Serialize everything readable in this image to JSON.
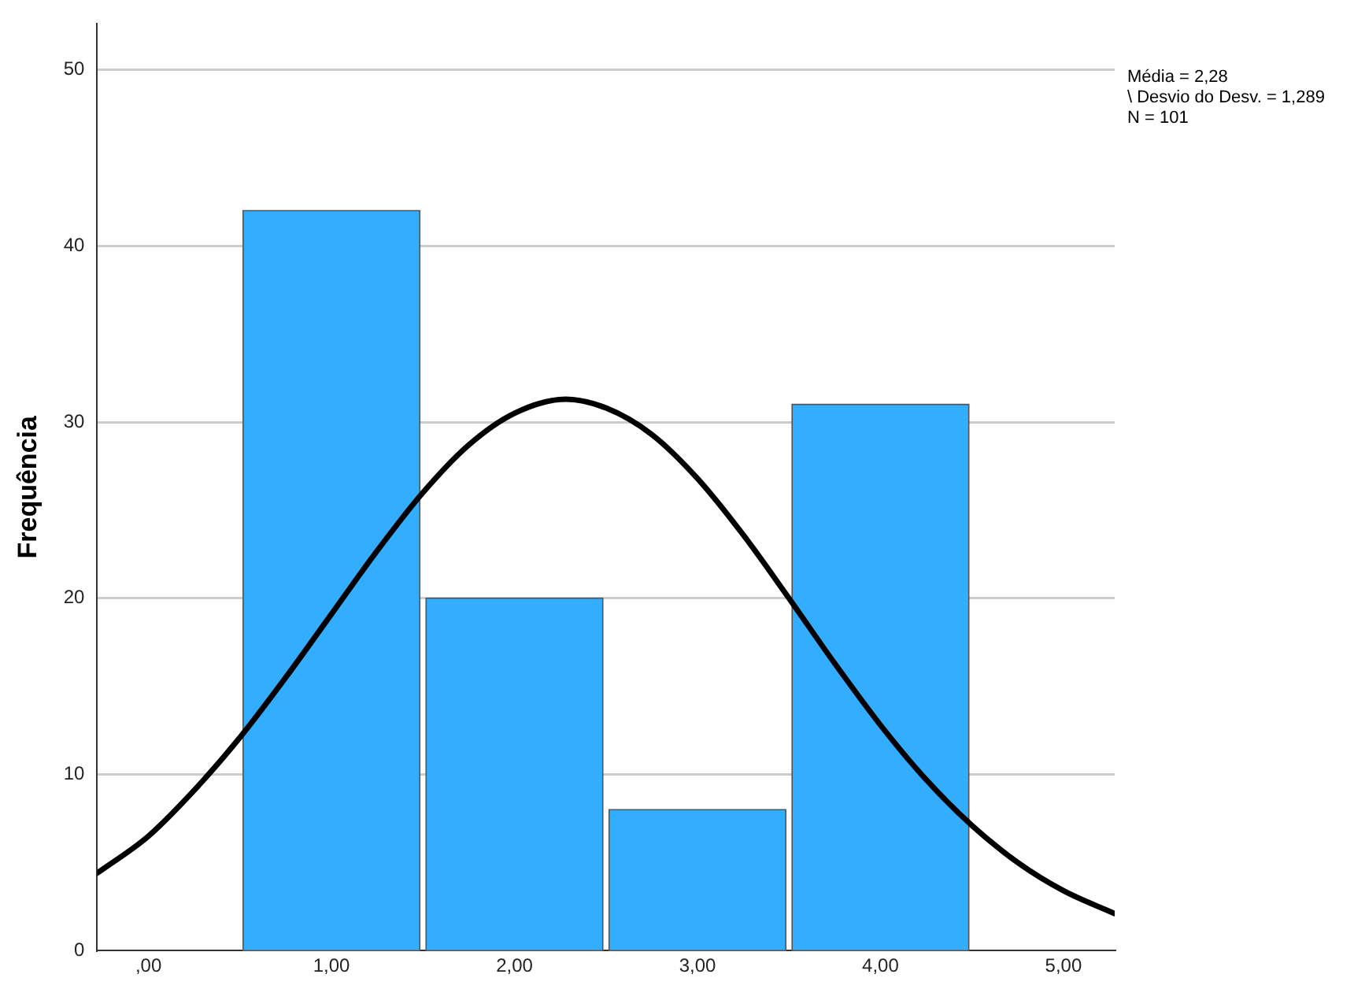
{
  "chart_data": {
    "type": "histogram",
    "ylabel": "Frequência",
    "bins": [
      0.5,
      1.5,
      2.5,
      3.5,
      4.5
    ],
    "values": [
      42,
      20,
      8,
      31
    ],
    "color": "#33adff",
    "series": [
      {
        "type": "line",
        "color": "#000000",
        "x": [
          -0.28,
          0,
          0.25,
          0.5,
          0.75,
          1,
          1.25,
          1.5,
          1.75,
          2,
          2.28,
          2.5,
          2.75,
          3,
          3.25,
          3.5,
          3.75,
          4,
          4.25,
          4.5,
          4.75,
          5,
          5.28
        ],
        "values": [
          4.4,
          6.5,
          9.1,
          12.1,
          15.5,
          19.1,
          22.7,
          26,
          28.7,
          30.5,
          31.3,
          30.8,
          29.3,
          26.8,
          23.6,
          20,
          16.3,
          12.8,
          9.7,
          7.1,
          5,
          3.4,
          2.1
        ]
      }
    ],
    "xlim": [
      -0.28,
      5.28
    ],
    "xticks": [
      {
        "value": 0,
        "label": ",00"
      },
      {
        "value": 1,
        "label": "1,00"
      },
      {
        "value": 2,
        "label": "2,00"
      },
      {
        "value": 3,
        "label": "3,00"
      },
      {
        "value": 4,
        "label": "4,00"
      },
      {
        "value": 5,
        "label": "5,00"
      }
    ],
    "ylim": [
      0,
      52.6
    ],
    "yticks": [
      0,
      10,
      20,
      30,
      40,
      50
    ],
    "grid": "y",
    "legend": false,
    "marker": "none",
    "line_style": "solid",
    "annotations": [
      "Média = 2,28",
      "\\ Desvio do Desv. = 1,289",
      "N = 101"
    ]
  }
}
